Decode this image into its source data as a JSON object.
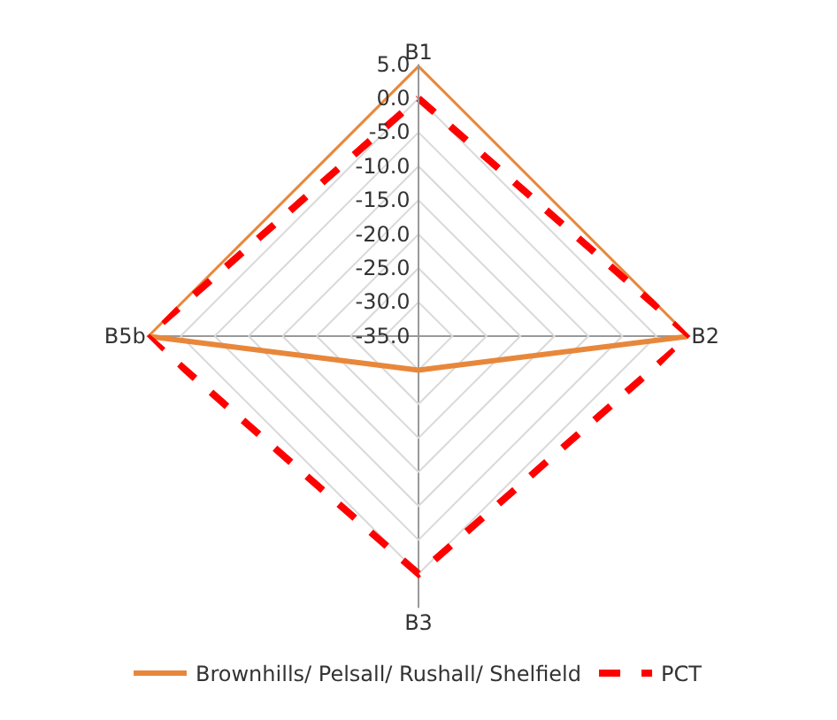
{
  "chart_data": {
    "type": "radar",
    "categories": [
      "B1",
      "B2",
      "B3",
      "B5b"
    ],
    "series": [
      {
        "name": "Brownhills/ Pelsall/ Rushall/ Shelfield",
        "color": "#e8873a",
        "values": [
          5,
          5,
          -30,
          5
        ],
        "line_style": "solid"
      },
      {
        "name": "PCT",
        "color": "#ff0000",
        "values": [
          0,
          5,
          0,
          5
        ],
        "line_style": "dashed"
      }
    ],
    "ylim": [
      -35,
      5
    ],
    "yticks": [
      {
        "value": 5,
        "label": "5.0"
      },
      {
        "value": 0,
        "label": "0.0"
      },
      {
        "value": -5,
        "label": "-5.0"
      },
      {
        "value": -10,
        "label": "-10.0"
      },
      {
        "value": -15,
        "label": "-15.0"
      },
      {
        "value": -20,
        "label": "-20.0"
      },
      {
        "value": -25,
        "label": "-25.0"
      },
      {
        "value": -30,
        "label": "-30.0"
      },
      {
        "value": -35,
        "label": "-35.0"
      }
    ],
    "grid": true,
    "legend": "bottom",
    "marker": "none"
  }
}
